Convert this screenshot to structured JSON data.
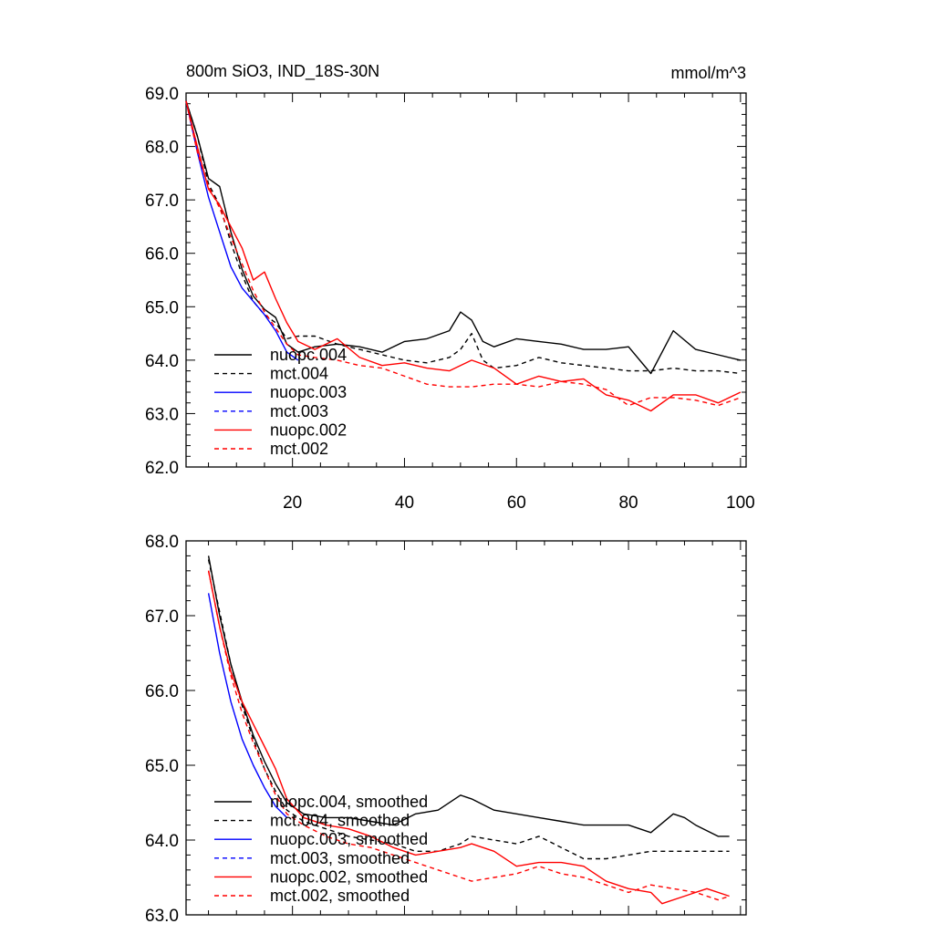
{
  "figure": {
    "title": "800m SiO3, IND_18S-30N",
    "units": "mmol/m^3"
  },
  "chart_data": [
    {
      "type": "line",
      "title": "800m SiO3, IND_18S-30N",
      "units_label": "mmol/m^3",
      "xlim": [
        1,
        101
      ],
      "ylim": [
        62.0,
        69.0
      ],
      "x_ticks": [
        20,
        40,
        60,
        80,
        100
      ],
      "x_tick_labels": [
        "20",
        "40",
        "60",
        "80",
        "100"
      ],
      "y_ticks": [
        62.0,
        63.0,
        64.0,
        65.0,
        66.0,
        67.0,
        68.0,
        69.0
      ],
      "y_tick_labels": [
        "62.0",
        "63.0",
        "64.0",
        "65.0",
        "66.0",
        "67.0",
        "68.0",
        "69.0"
      ],
      "legend_position": "bottom-left",
      "series": [
        {
          "name": "nuopc.004",
          "color": "#000000",
          "dash": "solid",
          "x": [
            1,
            3,
            5,
            7,
            9,
            11,
            13,
            15,
            17,
            19,
            21,
            24,
            28,
            32,
            36,
            40,
            44,
            48,
            50,
            52,
            54,
            56,
            60,
            64,
            68,
            72,
            76,
            80,
            84,
            88,
            92,
            96,
            100
          ],
          "y": [
            68.85,
            68.2,
            67.4,
            67.25,
            66.4,
            65.7,
            65.2,
            64.95,
            64.8,
            64.3,
            64.15,
            64.25,
            64.3,
            64.25,
            64.15,
            64.35,
            64.4,
            64.55,
            64.9,
            64.75,
            64.35,
            64.25,
            64.4,
            64.35,
            64.3,
            64.2,
            64.2,
            64.25,
            63.75,
            64.55,
            64.2,
            64.1,
            64.0
          ]
        },
        {
          "name": "mct.004",
          "color": "#000000",
          "dash": "dashed",
          "x": [
            1,
            3,
            5,
            7,
            9,
            11,
            13,
            15,
            17,
            19,
            21,
            24,
            28,
            32,
            36,
            40,
            44,
            48,
            50,
            52,
            54,
            56,
            60,
            64,
            68,
            72,
            76,
            80,
            84,
            88,
            92,
            96,
            100
          ],
          "y": [
            68.85,
            68.2,
            67.3,
            66.9,
            66.2,
            65.6,
            65.1,
            64.85,
            64.7,
            64.4,
            64.45,
            64.45,
            64.3,
            64.2,
            64.1,
            64.0,
            63.95,
            64.05,
            64.2,
            64.5,
            64.0,
            63.85,
            63.9,
            64.05,
            63.95,
            63.9,
            63.85,
            63.8,
            63.8,
            63.85,
            63.8,
            63.8,
            63.75
          ]
        },
        {
          "name": "nuopc.003",
          "color": "#0000ff",
          "dash": "solid",
          "x": [
            1,
            3,
            5,
            7,
            9,
            11,
            13,
            15,
            17,
            19,
            21
          ],
          "y": [
            68.85,
            67.9,
            67.05,
            66.4,
            65.75,
            65.35,
            65.1,
            64.85,
            64.55,
            64.15,
            64.0
          ]
        },
        {
          "name": "mct.003",
          "color": "#0000ff",
          "dash": "dashed",
          "x": [],
          "y": []
        },
        {
          "name": "nuopc.002",
          "color": "#ff0000",
          "dash": "solid",
          "x": [
            1,
            3,
            5,
            7,
            9,
            11,
            13,
            15,
            17,
            19,
            21,
            24,
            28,
            32,
            36,
            40,
            44,
            48,
            52,
            56,
            60,
            64,
            68,
            72,
            76,
            80,
            84,
            88,
            92,
            96,
            100
          ],
          "y": [
            68.85,
            68.0,
            67.2,
            66.9,
            66.5,
            66.1,
            65.5,
            65.65,
            65.15,
            64.7,
            64.35,
            64.2,
            64.4,
            64.05,
            63.9,
            63.95,
            63.85,
            63.8,
            64.0,
            63.85,
            63.55,
            63.7,
            63.6,
            63.65,
            63.35,
            63.25,
            63.05,
            63.35,
            63.35,
            63.2,
            63.4
          ]
        },
        {
          "name": "mct.002",
          "color": "#ff0000",
          "dash": "dashed",
          "x": [
            1,
            3,
            5,
            7,
            9,
            11,
            13,
            15,
            17,
            19,
            21,
            24,
            28,
            32,
            36,
            40,
            44,
            48,
            52,
            56,
            60,
            64,
            68,
            72,
            76,
            80,
            84,
            88,
            92,
            96,
            100
          ],
          "y": [
            68.85,
            67.9,
            67.25,
            66.85,
            66.3,
            65.8,
            65.3,
            64.9,
            64.6,
            64.3,
            64.1,
            64.05,
            64.0,
            63.9,
            63.85,
            63.7,
            63.55,
            63.5,
            63.5,
            63.55,
            63.55,
            63.5,
            63.6,
            63.55,
            63.45,
            63.15,
            63.3,
            63.3,
            63.25,
            63.15,
            63.3
          ]
        }
      ]
    },
    {
      "type": "line",
      "xlim": [
        1,
        101
      ],
      "ylim": [
        63.0,
        68.0
      ],
      "x_ticks": [
        20,
        40,
        60,
        80,
        100
      ],
      "y_ticks": [
        63.0,
        64.0,
        65.0,
        66.0,
        67.0,
        68.0
      ],
      "y_tick_labels": [
        "63.0",
        "64.0",
        "65.0",
        "66.0",
        "67.0",
        "68.0"
      ],
      "legend_position": "bottom-left",
      "series": [
        {
          "name": "nuopc.004, smoothed",
          "color": "#000000",
          "dash": "solid",
          "x": [
            5,
            7,
            9,
            11,
            13,
            15,
            17,
            19,
            22,
            26,
            30,
            34,
            38,
            42,
            46,
            50,
            52,
            56,
            60,
            64,
            68,
            72,
            76,
            80,
            84,
            88,
            90,
            92,
            96,
            98
          ],
          "y": [
            67.8,
            67.0,
            66.35,
            65.85,
            65.4,
            65.05,
            64.75,
            64.5,
            64.35,
            64.3,
            64.3,
            64.25,
            64.2,
            64.35,
            64.4,
            64.6,
            64.55,
            64.4,
            64.35,
            64.3,
            64.25,
            64.2,
            64.2,
            64.2,
            64.1,
            64.35,
            64.3,
            64.2,
            64.05,
            64.05
          ]
        },
        {
          "name": "mct.004, smoothed",
          "color": "#000000",
          "dash": "dashed",
          "x": [
            5,
            7,
            9,
            11,
            13,
            15,
            17,
            19,
            22,
            26,
            30,
            34,
            38,
            42,
            46,
            50,
            52,
            56,
            60,
            64,
            68,
            72,
            76,
            80,
            84,
            88,
            92,
            96,
            98
          ],
          "y": [
            67.75,
            67.05,
            66.35,
            65.8,
            65.35,
            64.95,
            64.65,
            64.4,
            64.25,
            64.15,
            64.05,
            64.0,
            63.95,
            63.85,
            63.85,
            63.95,
            64.05,
            64.0,
            63.95,
            64.05,
            63.9,
            63.75,
            63.75,
            63.8,
            63.85,
            63.85,
            63.85,
            63.85,
            63.85
          ]
        },
        {
          "name": "nuopc.003, smoothed",
          "color": "#0000ff",
          "dash": "solid",
          "x": [
            5,
            7,
            9,
            11,
            13,
            15,
            17,
            19
          ],
          "y": [
            67.3,
            66.5,
            65.85,
            65.35,
            65.0,
            64.7,
            64.45,
            64.3
          ]
        },
        {
          "name": "mct.003, smoothed",
          "color": "#0000ff",
          "dash": "dashed",
          "x": [],
          "y": []
        },
        {
          "name": "nuopc.002, smoothed",
          "color": "#ff0000",
          "dash": "solid",
          "x": [
            5,
            7,
            9,
            11,
            13,
            15,
            17,
            19,
            22,
            26,
            30,
            34,
            38,
            42,
            46,
            50,
            52,
            56,
            60,
            64,
            68,
            72,
            76,
            80,
            84,
            86,
            90,
            94,
            98
          ],
          "y": [
            67.6,
            66.85,
            66.25,
            65.85,
            65.55,
            65.25,
            64.95,
            64.55,
            64.3,
            64.2,
            64.15,
            64.05,
            63.9,
            63.8,
            63.85,
            63.9,
            63.95,
            63.85,
            63.65,
            63.7,
            63.7,
            63.65,
            63.45,
            63.35,
            63.3,
            63.15,
            63.25,
            63.35,
            63.25
          ]
        },
        {
          "name": "mct.002, smoothed",
          "color": "#ff0000",
          "dash": "dashed",
          "x": [
            5,
            7,
            9,
            11,
            13,
            15,
            17,
            19,
            22,
            26,
            30,
            34,
            38,
            42,
            46,
            50,
            52,
            56,
            60,
            64,
            68,
            72,
            76,
            80,
            84,
            88,
            92,
            96,
            98
          ],
          "y": [
            67.6,
            66.85,
            66.2,
            65.7,
            65.3,
            64.95,
            64.6,
            64.35,
            64.2,
            64.05,
            63.95,
            63.9,
            63.8,
            63.7,
            63.6,
            63.5,
            63.45,
            63.5,
            63.55,
            63.65,
            63.55,
            63.5,
            63.4,
            63.3,
            63.4,
            63.35,
            63.3,
            63.2,
            63.25
          ]
        }
      ]
    }
  ]
}
